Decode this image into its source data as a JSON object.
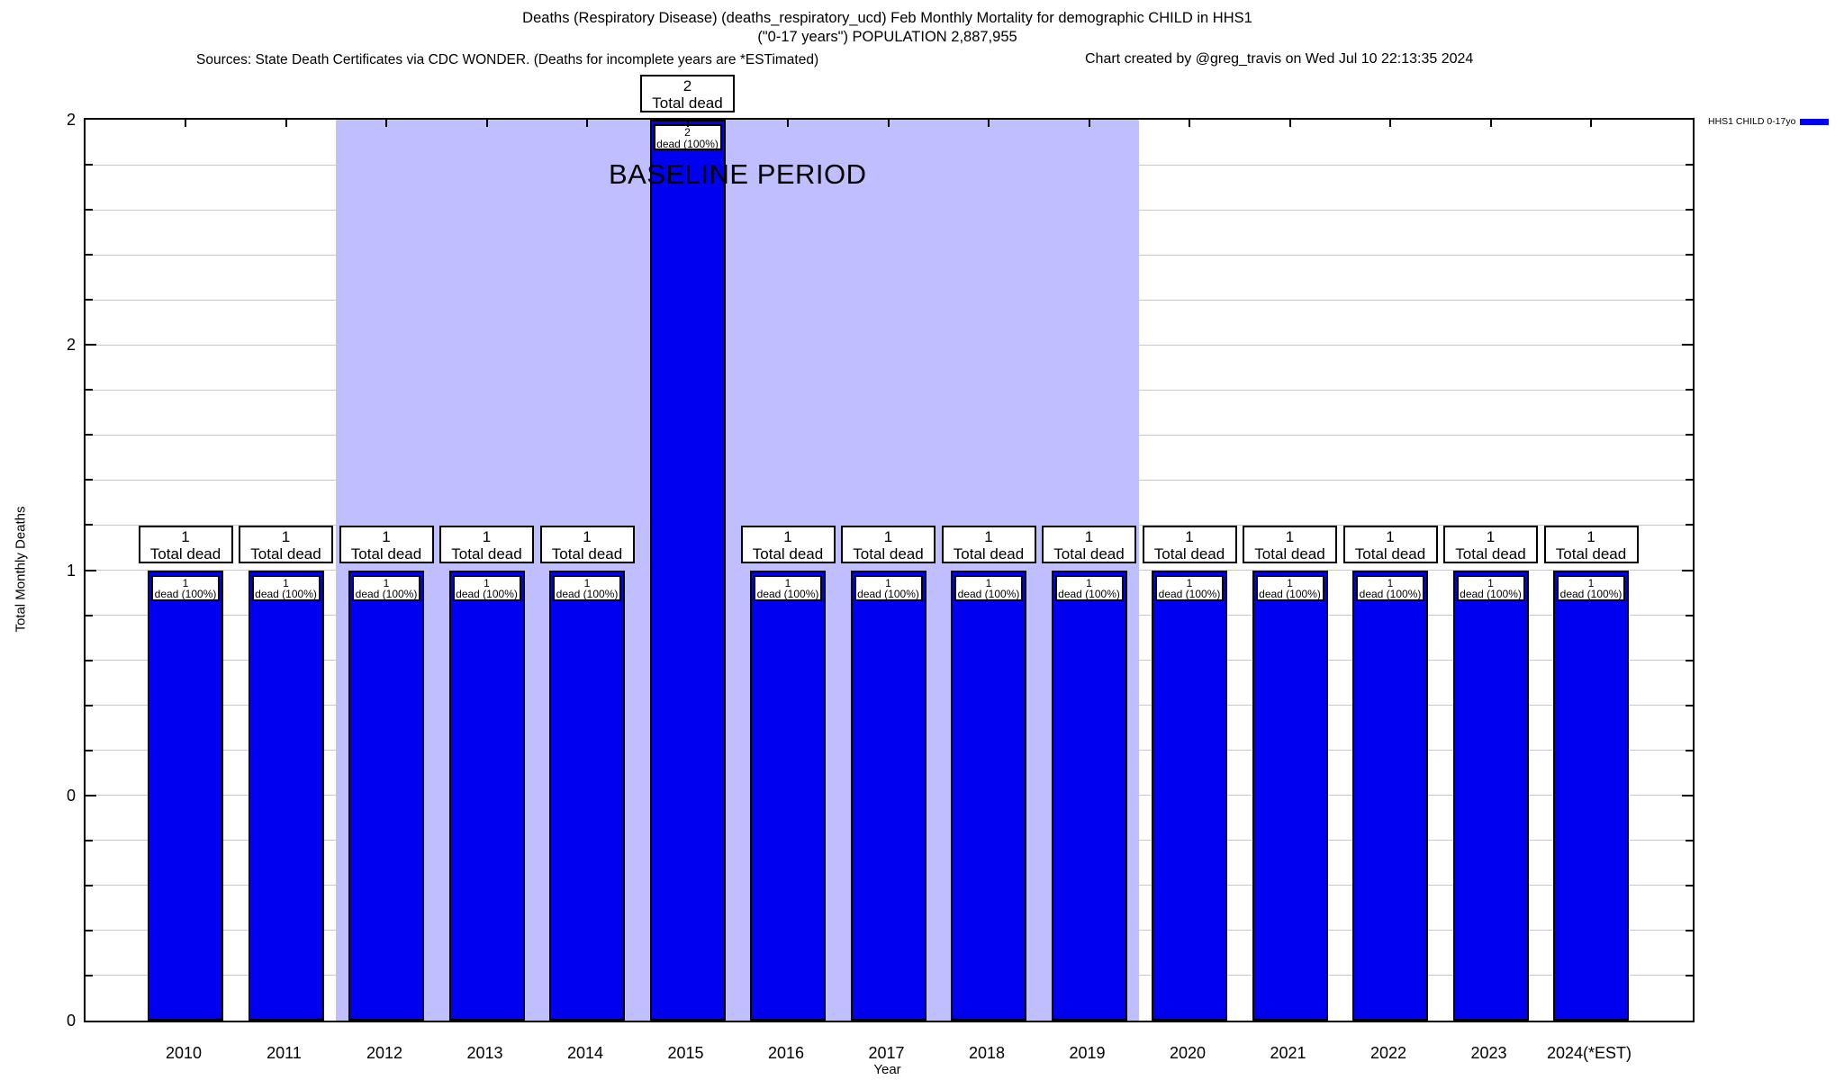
{
  "header": {
    "title_line1": "Deaths (Respiratory Disease) (deaths_respiratory_ucd) Feb Monthly Mortality for demographic CHILD in HHS1",
    "title_line2": "(\"0-17 years\") POPULATION 2,887,955",
    "sources": "Sources: State Death Certificates via CDC WONDER. (Deaths for incomplete years are *ESTimated)",
    "credit": "Chart created by @greg_travis on Wed Jul 10 22:13:35 2024"
  },
  "chart_data": {
    "type": "bar",
    "title": "Deaths (Respiratory Disease) (deaths_respiratory_ucd) Feb Monthly Mortality for demographic CHILD in HHS1",
    "subtitle": "(\"0-17 years\") POPULATION 2,887,955",
    "xlabel": "Year",
    "ylabel": "Total Monthly Deaths",
    "categories": [
      "2010",
      "2011",
      "2012",
      "2013",
      "2014",
      "2015",
      "2016",
      "2017",
      "2018",
      "2019",
      "2020",
      "2021",
      "2022",
      "2023",
      "2024(*EST)"
    ],
    "values": [
      1,
      1,
      1,
      1,
      1,
      2,
      1,
      1,
      1,
      1,
      1,
      1,
      1,
      1,
      1
    ],
    "bar_top_label_suffix": "Total dead",
    "bar_inner_label_suffix": "dead (100%)",
    "ylim": [
      0,
      2
    ],
    "yticks": [
      {
        "value": 0,
        "label": "0"
      },
      {
        "value": 0.5,
        "label": "0"
      },
      {
        "value": 1,
        "label": "1"
      },
      {
        "value": 1.5,
        "label": "2"
      },
      {
        "value": 2,
        "label": "2"
      }
    ],
    "minor_grid_step": 0.1,
    "grid": true,
    "legend": {
      "label": "HHS1 CHILD 0-17yo",
      "position": "top-right-outside"
    },
    "baseline_region": {
      "label": "BASELINE PERIOD",
      "from_category": "2012",
      "to_category": "2019"
    },
    "colors": {
      "bar": "#0000f0",
      "bar_border": "#000000",
      "baseline_region": "#bfbfff",
      "gridline": "#c8c8c8"
    }
  }
}
